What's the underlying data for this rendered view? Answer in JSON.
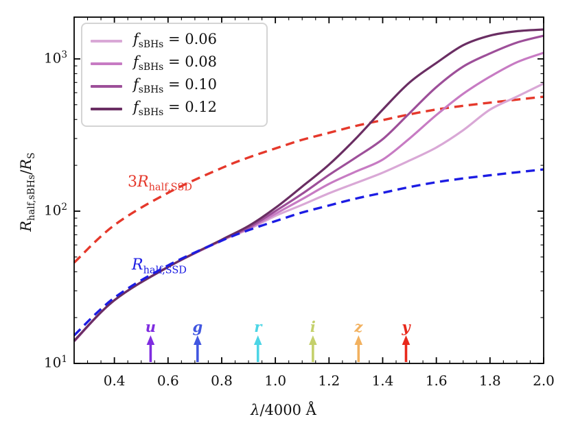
{
  "figure": {
    "background": "#ffffff",
    "frame_color": "#000000"
  },
  "axes": {
    "xlabel": {
      "lambda": "λ",
      "rest": "/4000 Å"
    },
    "ylabel": {
      "sym1": "R",
      "sub1": "half,sBHs",
      "sep": "/",
      "sym2": "R",
      "sub2": "S"
    },
    "x_ticks": [
      {
        "label": "0.4",
        "value": 0.4
      },
      {
        "label": "0.6",
        "value": 0.6
      },
      {
        "label": "0.8",
        "value": 0.8
      },
      {
        "label": "1.0",
        "value": 1.0
      },
      {
        "label": "1.2",
        "value": 1.2
      },
      {
        "label": "1.4",
        "value": 1.4
      },
      {
        "label": "1.6",
        "value": 1.6
      },
      {
        "label": "1.8",
        "value": 1.8
      },
      {
        "label": "2.0",
        "value": 2.0
      }
    ],
    "y_ticks": [
      {
        "base": "10",
        "exp": "1",
        "value": 10
      },
      {
        "base": "10",
        "exp": "2",
        "value": 100
      },
      {
        "base": "10",
        "exp": "3",
        "value": 1000
      }
    ],
    "xlim": [
      0.25,
      2.0
    ],
    "ylim": [
      10,
      1880
    ],
    "yscale": "log",
    "x_minor_step": 0.05
  },
  "legend": {
    "items": [
      {
        "symbol": "f",
        "subscript": "sBHs",
        "eq": " = 0.06",
        "color": "#D9A8D6"
      },
      {
        "symbol": "f",
        "subscript": "sBHs",
        "eq": " = 0.08",
        "color": "#C77BC3"
      },
      {
        "symbol": "f",
        "subscript": "sBHs",
        "eq": " = 0.10",
        "color": "#9D4F99"
      },
      {
        "symbol": "f",
        "subscript": "sBHs",
        "eq": " = 0.12",
        "color": "#6A2E63"
      }
    ]
  },
  "annotations": {
    "red": {
      "prefix": "3",
      "symbol": "R",
      "subscript": "half,SSD",
      "color": "#E5382B"
    },
    "blue": {
      "prefix": "",
      "symbol": "R",
      "subscript": "half,SSD",
      "color": "#1C1CE3"
    }
  },
  "bands": [
    {
      "name": "u",
      "x": 0.535,
      "color": "#7F2CE0"
    },
    {
      "name": "g",
      "x": 0.71,
      "color": "#4156E0"
    },
    {
      "name": "r",
      "x": 0.935,
      "color": "#4CD5E5"
    },
    {
      "name": "i",
      "x": 1.14,
      "color": "#C4D06B"
    },
    {
      "name": "z",
      "x": 1.31,
      "color": "#F2B15F"
    },
    {
      "name": "y",
      "x": 1.487,
      "color": "#E8281B"
    }
  ],
  "chart_data": {
    "type": "line",
    "title": "",
    "xlabel": "λ/4000 Å",
    "ylabel": "R_half,sBHs / R_S",
    "xlim": [
      0.25,
      2.0
    ],
    "ylim": [
      10,
      1880
    ],
    "yscale": "log",
    "grid": false,
    "legend_position": "upper left",
    "x": [
      0.25,
      0.4,
      0.6,
      0.8,
      0.9,
      1.0,
      1.1,
      1.2,
      1.3,
      1.4,
      1.5,
      1.6,
      1.7,
      1.8,
      1.9,
      2.0
    ],
    "series": [
      {
        "name": "3R_half,SSD",
        "style": "dashed",
        "color": "#E5382B",
        "width": 3.4,
        "values": [
          45.9,
          81,
          132,
          192,
          225,
          258,
          294,
          327,
          363,
          396,
          432,
          465,
          492,
          516,
          540,
          564
        ]
      },
      {
        "name": "f_sBHs = 0.06",
        "style": "solid",
        "color": "#D9A8D6",
        "width": 3.2,
        "values": [
          14.0,
          26,
          43,
          64,
          76,
          93,
          110,
          131,
          153,
          179,
          215,
          262,
          340,
          464,
          565,
          689
        ]
      },
      {
        "name": "f_sBHs = 0.08",
        "style": "solid",
        "color": "#C77BC3",
        "width": 3.2,
        "values": [
          14.0,
          26,
          43,
          64.5,
          77,
          96,
          120,
          151,
          182,
          218,
          300,
          428,
          590,
          764,
          950,
          1096
        ]
      },
      {
        "name": "f_sBHs = 0.10",
        "style": "solid",
        "color": "#9D4F99",
        "width": 3.2,
        "values": [
          14.0,
          26,
          43,
          64.5,
          78,
          100,
          130,
          173,
          225,
          297,
          440,
          653,
          890,
          1086,
          1280,
          1420
        ]
      },
      {
        "name": "f_sBHs = 0.12",
        "style": "solid",
        "color": "#6A2E63",
        "width": 3.2,
        "values": [
          14.1,
          26,
          43,
          65,
          80,
          105,
          145,
          202,
          300,
          464,
          700,
          940,
          1230,
          1423,
          1520,
          1560
        ]
      },
      {
        "name": "R_half,SSD",
        "style": "dashed",
        "color": "#1C1CE3",
        "width": 3.4,
        "values": [
          15.3,
          27,
          44,
          64,
          75,
          86,
          98,
          109,
          121,
          132,
          144,
          155,
          164,
          172,
          180,
          188
        ]
      }
    ]
  }
}
